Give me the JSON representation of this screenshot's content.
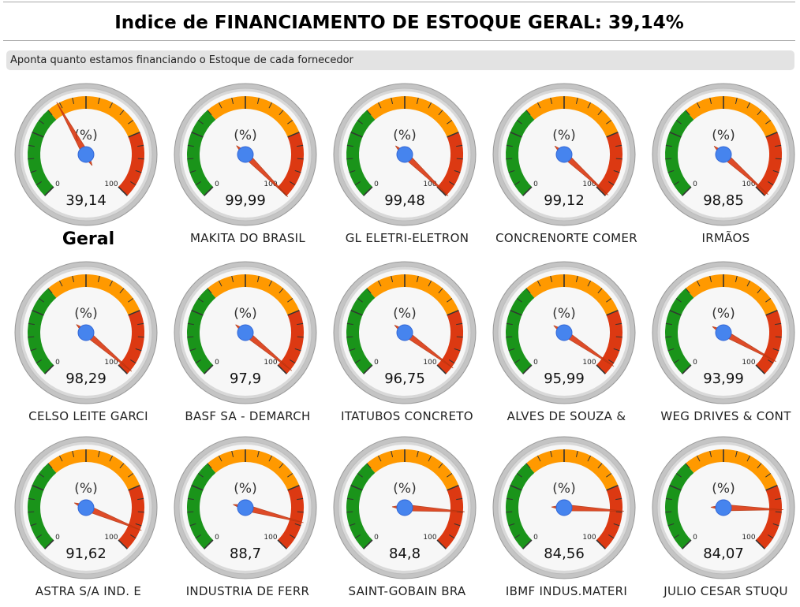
{
  "header": {
    "title": "Indice de FINANCIAMENTO DE ESTOQUE GERAL: 39,14%"
  },
  "subtitle": "Aponta quanto estamos financiando o Estoque de cada fornecedor",
  "gauge_common": {
    "unit_label": "(%)",
    "min_label": "0",
    "max_label": "100",
    "colors": {
      "green_band": "#1a941a",
      "orange_band": "#ff9900",
      "red_band": "#dc3912",
      "needle": "#dc3912",
      "hub": "#4684ee",
      "face": "#f7f7f7",
      "rim": "#cccccc"
    }
  },
  "gauges": [
    {
      "value": 39.14,
      "value_label": "39,14",
      "label": "Geral"
    },
    {
      "value": 99.99,
      "value_label": "99,99",
      "label": "MAKITA DO BRASIL"
    },
    {
      "value": 99.48,
      "value_label": "99,48",
      "label": "GL ELETRI-ELETRON"
    },
    {
      "value": 99.12,
      "value_label": "99,12",
      "label": "CONCRENORTE COMER"
    },
    {
      "value": 98.85,
      "value_label": "98,85",
      "label": "IRMÃOS"
    },
    {
      "value": 98.29,
      "value_label": "98,29",
      "label": "CELSO LEITE GARCI"
    },
    {
      "value": 97.9,
      "value_label": "97,9",
      "label": "BASF SA - DEMARCH"
    },
    {
      "value": 96.75,
      "value_label": "96,75",
      "label": "ITATUBOS CONCRETO"
    },
    {
      "value": 95.99,
      "value_label": "95,99",
      "label": "ALVES DE SOUZA &"
    },
    {
      "value": 93.99,
      "value_label": "93,99",
      "label": "WEG DRIVES & CONT"
    },
    {
      "value": 91.62,
      "value_label": "91,62",
      "label": "ASTRA S/A IND. E"
    },
    {
      "value": 88.7,
      "value_label": "88,7",
      "label": "INDUSTRIA DE FERR"
    },
    {
      "value": 84.8,
      "value_label": "84,8",
      "label": "SAINT-GOBAIN BRA"
    },
    {
      "value": 84.56,
      "value_label": "84,56",
      "label": "IBMF INDUS.MATERI"
    },
    {
      "value": 84.07,
      "value_label": "84,07",
      "label": "JULIO CESAR STUQU"
    }
  ]
}
